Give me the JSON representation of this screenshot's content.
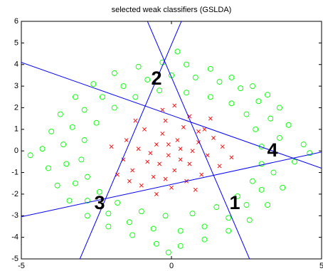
{
  "chart_data": {
    "type": "scatter",
    "title": "selected weak classifiers (GSLDA)",
    "xlim": [
      -5,
      5
    ],
    "xticks": [
      -5,
      0,
      5
    ],
    "ylim": [
      -5,
      6
    ],
    "yticks": [
      -5,
      -4,
      -3,
      -2,
      -1,
      0,
      1,
      2,
      3,
      4,
      5,
      6
    ],
    "series": [
      {
        "marker": "o",
        "color": "#00ff00",
        "x": [
          4.4,
          4.1,
          3.9,
          3.6,
          3.2,
          2.7,
          2.0,
          1.3,
          0.5,
          -0.3,
          -1.1,
          -1.9,
          -2.6,
          -3.2,
          -3.7,
          -4.0,
          -4.3,
          -4.1,
          -3.8,
          -3.4,
          -2.8,
          -2.1,
          -1.3,
          -0.5,
          0.3,
          1.1,
          1.9,
          2.6,
          3.2,
          3.7,
          3.0,
          2.8,
          2.5,
          2.0,
          1.3,
          0.5,
          -0.4,
          -1.2,
          -1.9,
          -2.5,
          -2.9,
          -3.0,
          -2.8,
          -2.4,
          -1.8,
          -1.0,
          -0.2,
          0.7,
          1.5,
          2.2,
          2.7,
          3.0,
          3.6,
          3.3,
          2.9,
          2.3,
          1.6,
          0.8,
          0.0,
          -0.8,
          -1.6,
          -2.3,
          -2.9,
          -3.3,
          -3.6,
          -3.5,
          -3.2,
          -2.8,
          -2.1,
          -1.4,
          -0.6,
          0.3,
          1.1,
          1.9,
          2.5,
          3.0,
          3.4,
          4.6,
          -4.7,
          0.2,
          -0.1
        ],
        "y": [
          0.3,
          -0.5,
          1.2,
          2.0,
          2.6,
          3.0,
          3.4,
          3.8,
          4.0,
          4.1,
          3.9,
          3.6,
          3.1,
          2.5,
          1.7,
          0.9,
          0.1,
          -0.8,
          -1.6,
          -2.3,
          -3.0,
          -3.5,
          -3.9,
          -4.3,
          -4.4,
          -4.1,
          -3.7,
          -3.2,
          -2.5,
          -1.7,
          0.2,
          1.0,
          1.7,
          2.2,
          2.5,
          2.7,
          2.8,
          2.5,
          2.0,
          1.3,
          0.5,
          -0.4,
          -1.2,
          -1.9,
          -2.4,
          -2.8,
          -3.0,
          -2.9,
          -2.6,
          -2.1,
          -1.4,
          -0.6,
          0.6,
          1.5,
          2.3,
          2.9,
          3.2,
          3.4,
          3.5,
          3.3,
          3.0,
          2.5,
          1.9,
          1.1,
          0.3,
          -0.6,
          -1.5,
          -2.3,
          -2.9,
          -3.3,
          -3.6,
          -3.7,
          -3.5,
          -3.1,
          -2.5,
          -1.8,
          -1.0,
          -0.1,
          -0.2,
          4.6,
          -4.7
        ]
      },
      {
        "marker": "x",
        "color": "#ff0000",
        "x": [
          -0.1,
          0.3,
          -0.5,
          0.6,
          -0.8,
          0.1,
          -0.3,
          0.9,
          -1.1,
          1.2,
          -0.6,
          0.5,
          -1.3,
          1.4,
          -0.2,
          0.4,
          -0.9,
          1.0,
          -1.5,
          1.6,
          0.0,
          -0.4,
          0.2,
          -0.7,
          0.7,
          -0.1,
          0.3,
          -1.0,
          1.1,
          -1.6,
          1.7,
          -0.3,
          0.8,
          -1.2,
          0.1,
          -0.5,
          1.3,
          -1.8,
          0.9,
          -0.2,
          0.6,
          -1.4,
          2.0,
          -2.0
        ],
        "y": [
          -0.2,
          0.1,
          0.3,
          -0.6,
          -0.5,
          -0.9,
          0.8,
          0.4,
          0.1,
          -0.2,
          -1.2,
          -1.4,
          -0.9,
          0.6,
          1.4,
          1.1,
          1.0,
          -1.1,
          0.5,
          -0.7,
          -1.7,
          -0.6,
          0.5,
          -0.1,
          0.0,
          0.3,
          -0.4,
          -1.6,
          1.0,
          -0.4,
          0.2,
          1.9,
          -1.8,
          1.4,
          2.1,
          -2.0,
          1.5,
          -1.1,
          0.9,
          -1.3,
          1.6,
          -1.4,
          -0.3,
          0.2
        ]
      },
      {
        "marker": "line",
        "color": "#0000ff",
        "x": [
          -5,
          5
        ],
        "y": [
          4.1,
          -0.8
        ]
      },
      {
        "marker": "line",
        "color": "#0000ff",
        "x": [
          -5,
          5
        ],
        "y": [
          -3.05,
          -0.05
        ]
      },
      {
        "marker": "line",
        "color": "#0000ff",
        "x": [
          -0.8,
          2.6
        ],
        "y": [
          6,
          -5
        ]
      },
      {
        "marker": "line",
        "color": "#0000ff",
        "x": [
          0.33,
          -3.05
        ],
        "y": [
          6,
          -5
        ]
      }
    ],
    "annotations": [
      "1",
      "2",
      "3",
      "4"
    ]
  }
}
